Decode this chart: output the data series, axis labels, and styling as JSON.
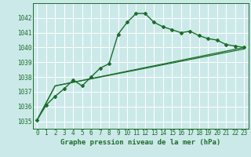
{
  "background_color": "#cce9e9",
  "grid_color": "#ffffff",
  "line_color": "#1a6e2a",
  "xlabel": "Graphe pression niveau de la mer (hPa)",
  "xlabel_fontsize": 6.5,
  "tick_fontsize": 5.5,
  "xlim": [
    -0.5,
    23.5
  ],
  "ylim": [
    1034.5,
    1043.0
  ],
  "yticks": [
    1035,
    1036,
    1037,
    1038,
    1039,
    1040,
    1041,
    1042
  ],
  "xticks": [
    0,
    1,
    2,
    3,
    4,
    5,
    6,
    7,
    8,
    9,
    10,
    11,
    12,
    13,
    14,
    15,
    16,
    17,
    18,
    19,
    20,
    21,
    22,
    23
  ],
  "series1_x": [
    0,
    1,
    2,
    3,
    4,
    5,
    6,
    7,
    8,
    9,
    10,
    11,
    12,
    13,
    14,
    15,
    16,
    17,
    18,
    19,
    20,
    21,
    22,
    23
  ],
  "series1_y": [
    1035.1,
    1036.1,
    1036.7,
    1037.2,
    1037.8,
    1037.4,
    1038.0,
    1038.6,
    1038.9,
    1040.9,
    1041.7,
    1042.3,
    1042.3,
    1041.7,
    1041.4,
    1041.2,
    1041.0,
    1041.1,
    1040.8,
    1040.6,
    1040.5,
    1040.2,
    1040.1,
    1040.0
  ],
  "series2_x": [
    0,
    2,
    23
  ],
  "series2_y": [
    1035.1,
    1037.4,
    1040.0
  ],
  "series3_x": [
    0,
    2,
    23
  ],
  "series3_y": [
    1035.1,
    1037.4,
    1039.9
  ]
}
